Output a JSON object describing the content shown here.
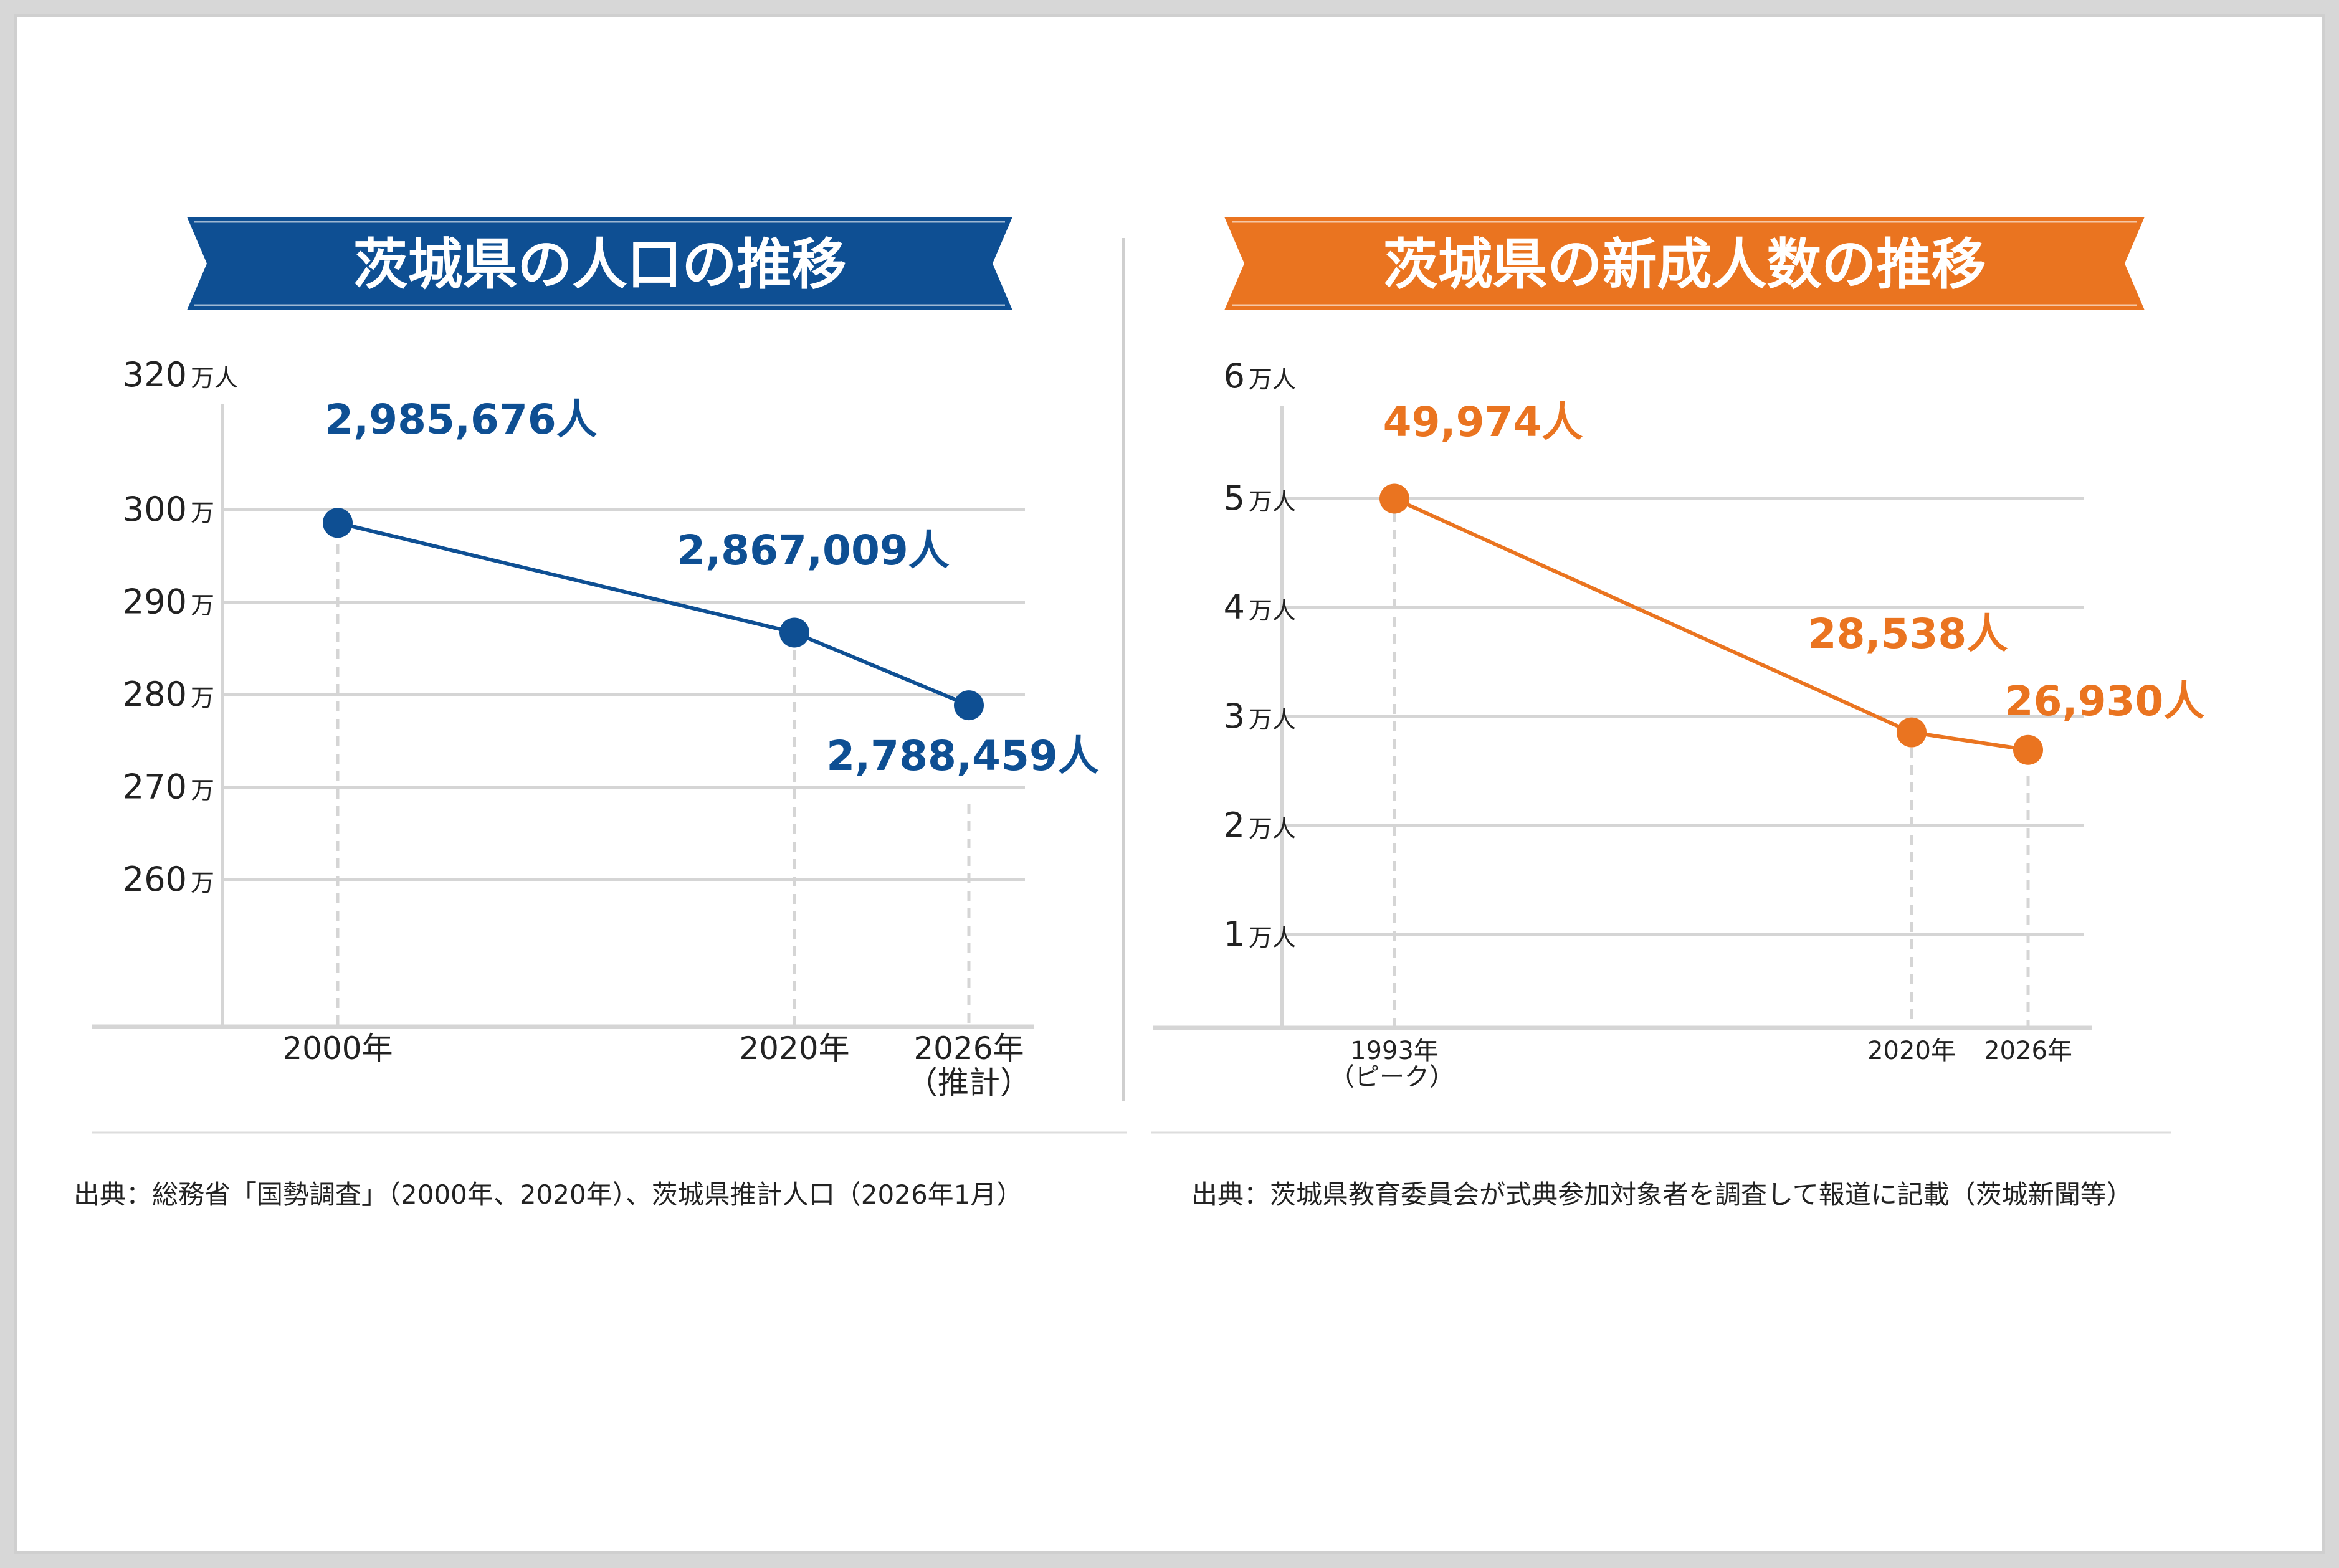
{
  "colors": {
    "blue": "#0e4f93",
    "orange": "#ea7420",
    "grid": "#d5d5d5",
    "text": "#222222",
    "background": "#ffffff"
  },
  "chart_data": [
    {
      "type": "line",
      "title": "茨城県の人口の推移",
      "unit_label": "万人",
      "y_ticks": [
        {
          "value": 320,
          "label": "320",
          "unit": "万人"
        },
        {
          "value": 300,
          "label": "300",
          "unit": "万"
        },
        {
          "value": 290,
          "label": "290",
          "unit": "万"
        },
        {
          "value": 280,
          "label": "280",
          "unit": "万"
        },
        {
          "value": 270,
          "label": "270",
          "unit": "万"
        },
        {
          "value": 260,
          "label": "260",
          "unit": "万"
        }
      ],
      "x_ticks": [
        {
          "label": "2000年",
          "sublabel": ""
        },
        {
          "label": "2020年",
          "sublabel": ""
        },
        {
          "label": "2026年",
          "sublabel": "（推計）"
        }
      ],
      "points": [
        {
          "x_label": "2000年",
          "value": 2985676,
          "label": "2,985,676人"
        },
        {
          "x_label": "2020年",
          "value": 2867009,
          "label": "2,867,009人"
        },
        {
          "x_label": "2026年",
          "value": 2788459,
          "label": "2,788,459人"
        }
      ],
      "color": "#0e4f93",
      "source": "出典：総務省「国勢調査」（2000年、2020年）、茨城県推計人口（2026年1月）"
    },
    {
      "type": "line",
      "title": "茨城県の新成人数の推移",
      "unit_label": "万人",
      "y_ticks": [
        {
          "value": 6,
          "label": "6",
          "unit": "万人"
        },
        {
          "value": 5,
          "label": "5",
          "unit": "万人"
        },
        {
          "value": 4,
          "label": "4",
          "unit": "万人"
        },
        {
          "value": 3,
          "label": "3",
          "unit": "万人"
        },
        {
          "value": 2,
          "label": "2",
          "unit": "万人"
        },
        {
          "value": 1,
          "label": "1",
          "unit": "万人"
        }
      ],
      "x_ticks": [
        {
          "label": "1993年",
          "sublabel": "（ピーク）"
        },
        {
          "label": "2020年",
          "sublabel": ""
        },
        {
          "label": "2026年",
          "sublabel": ""
        }
      ],
      "points": [
        {
          "x_label": "1993年",
          "value": 49974,
          "label": "49,974人"
        },
        {
          "x_label": "2020年",
          "value": 28538,
          "label": "28,538人"
        },
        {
          "x_label": "2026年",
          "value": 26930,
          "label": "26,930人"
        }
      ],
      "color": "#ea7420",
      "source": "出典：茨城県教育委員会が式典参加対象者を調査して報道に記載（茨城新聞等）"
    }
  ]
}
